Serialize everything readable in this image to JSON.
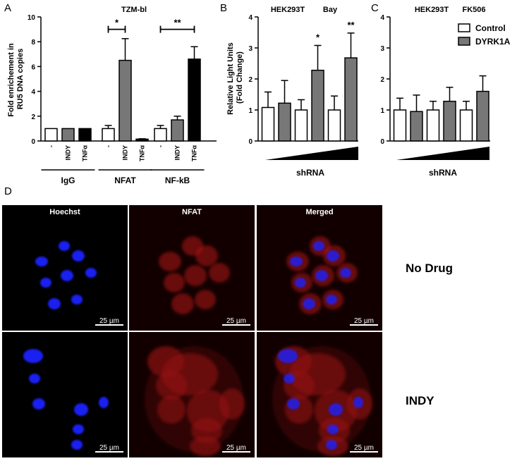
{
  "figure": {
    "panel_letters": {
      "a": "A",
      "b": "B",
      "c": "C",
      "d": "D"
    }
  },
  "colors": {
    "control": "#ffffff",
    "dyrk1a": "#777777",
    "tnf": "#000000",
    "hoechst": "#1a22ff",
    "nfat": "#cc1818",
    "micro_bg": "#000000"
  },
  "chart_data": [
    {
      "id": "A",
      "type": "bar",
      "title": "TZM-bl",
      "ylabel": "Fold enrichement in RU5 DNA copies",
      "ylim": [
        0,
        10
      ],
      "yticks": [
        0,
        2,
        4,
        6,
        8,
        10
      ],
      "groups": [
        {
          "name": "IgG",
          "bars": [
            {
              "label": "-",
              "value": 1.0,
              "error": 0,
              "fill": "white"
            },
            {
              "label": "INDY",
              "value": 1.0,
              "error": 0,
              "fill": "gray"
            },
            {
              "label": "TNFα",
              "value": 1.0,
              "error": 0,
              "fill": "black"
            }
          ]
        },
        {
          "name": "NFAT",
          "bars": [
            {
              "label": "-",
              "value": 1.0,
              "error": 0.25,
              "fill": "white"
            },
            {
              "label": "INDY",
              "value": 6.5,
              "error": 1.75,
              "fill": "gray"
            },
            {
              "label": "TNFα",
              "value": 0.15,
              "error": 0.03,
              "fill": "black"
            }
          ]
        },
        {
          "name": "NF-kB",
          "bars": [
            {
              "label": "-",
              "value": 1.0,
              "error": 0.25,
              "fill": "white"
            },
            {
              "label": "INDY",
              "value": 1.7,
              "error": 0.3,
              "fill": "gray"
            },
            {
              "label": "TNFα",
              "value": 6.6,
              "error": 1.0,
              "fill": "black"
            }
          ]
        }
      ],
      "significance": [
        {
          "from": [
            1,
            0
          ],
          "to": [
            1,
            1
          ],
          "y": 9.0,
          "label": "*"
        },
        {
          "from": [
            2,
            0
          ],
          "to": [
            2,
            2
          ],
          "y": 9.0,
          "label": "**"
        }
      ]
    },
    {
      "id": "B",
      "type": "bar",
      "title_left": "HEK293T",
      "title_right": "Bay",
      "ylabel": "Relative Light Units (Fold Change)",
      "xlabel": "shRNA",
      "ylim": [
        0,
        4
      ],
      "yticks": [
        0,
        1,
        2,
        3,
        4
      ],
      "bars": [
        {
          "value": 1.08,
          "error": 0.5,
          "fill": "white"
        },
        {
          "value": 1.22,
          "error": 0.73,
          "fill": "gray"
        },
        {
          "value": 1.0,
          "error": 0.33,
          "fill": "white"
        },
        {
          "value": 2.28,
          "error": 0.8,
          "fill": "gray",
          "sig": "*"
        },
        {
          "value": 1.0,
          "error": 0.45,
          "fill": "white"
        },
        {
          "value": 2.68,
          "error": 0.8,
          "fill": "gray",
          "sig": "**"
        }
      ]
    },
    {
      "id": "C",
      "type": "bar",
      "title_left": "HEK293T",
      "title_right": "FK506",
      "xlabel": "shRNA",
      "ylim": [
        0,
        4
      ],
      "yticks": [
        0,
        1,
        2,
        3,
        4
      ],
      "legend": [
        {
          "name": "Control",
          "fill": "white"
        },
        {
          "name": "DYRK1A",
          "fill": "gray"
        }
      ],
      "bars": [
        {
          "value": 1.0,
          "error": 0.38,
          "fill": "white"
        },
        {
          "value": 0.95,
          "error": 0.53,
          "fill": "gray"
        },
        {
          "value": 1.0,
          "error": 0.28,
          "fill": "white"
        },
        {
          "value": 1.28,
          "error": 0.45,
          "fill": "gray"
        },
        {
          "value": 1.0,
          "error": 0.28,
          "fill": "white"
        },
        {
          "value": 1.6,
          "error": 0.5,
          "fill": "gray"
        }
      ]
    }
  ],
  "micrographs": {
    "columns": [
      "Hoechst",
      "NFAT",
      "Merged"
    ],
    "rows": [
      "No Drug",
      "INDY"
    ],
    "scale_bar": "25 µm"
  }
}
